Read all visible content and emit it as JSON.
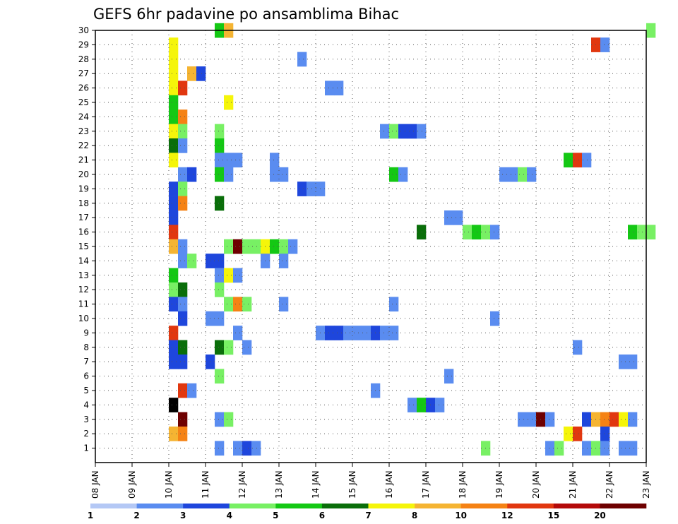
{
  "chart_data": {
    "type": "heatmap",
    "title": "GEFS 6hr padavine po ansamblima Bihac",
    "xlabel": "",
    "ylabel": "",
    "x_tick_labels": [
      "08 JAN",
      "09 JAN",
      "10 JAN",
      "11 JAN",
      "12 JAN",
      "13 JAN",
      "14 JAN",
      "15 JAN",
      "16 JAN",
      "17 JAN",
      "18 JAN",
      "19 JAN",
      "20 JAN",
      "21 JAN",
      "22 JAN",
      "23 JAN"
    ],
    "y_tick_labels": [
      "1",
      "2",
      "3",
      "4",
      "5",
      "6",
      "7",
      "8",
      "9",
      "10",
      "11",
      "12",
      "13",
      "14",
      "15",
      "16",
      "17",
      "18",
      "19",
      "20",
      "21",
      "22",
      "23",
      "24",
      "25",
      "26",
      "27",
      "28",
      "29",
      "30"
    ],
    "xlim_days": [
      0,
      15
    ],
    "ylim_members": [
      0,
      30
    ],
    "time_step_hours": 6,
    "grid": true,
    "colorbar_labels": [
      "1",
      "2",
      "3",
      "4",
      "5",
      "6",
      "7",
      "8",
      "10",
      "12",
      "15",
      "20"
    ],
    "colorbar_colors": [
      "#b4c8f5",
      "#5a8cf0",
      "#1e46dc",
      "#78f064",
      "#14c814",
      "#0a6e0a",
      "#f5f50a",
      "#f5b432",
      "#f58214",
      "#e1370f",
      "#b40a0a",
      "#6e0000"
    ],
    "cells": [
      [
        30,
        3.25,
        4
      ],
      [
        30,
        3.5,
        7
      ],
      [
        30,
        15,
        3
      ],
      [
        29,
        2,
        6
      ],
      [
        29,
        13.5,
        9
      ],
      [
        29,
        13.75,
        1
      ],
      [
        28,
        2,
        6
      ],
      [
        28,
        5.5,
        1
      ],
      [
        27,
        2,
        6
      ],
      [
        27,
        2.5,
        7
      ],
      [
        27,
        2.75,
        2
      ],
      [
        26,
        2,
        6
      ],
      [
        26,
        2.25,
        9
      ],
      [
        26,
        6.25,
        1
      ],
      [
        26,
        6.5,
        1
      ],
      [
        25,
        2,
        4
      ],
      [
        25,
        3.5,
        6
      ],
      [
        24,
        2,
        4
      ],
      [
        24,
        2.25,
        8
      ],
      [
        23,
        2,
        6
      ],
      [
        23,
        2.25,
        3
      ],
      [
        23,
        3.25,
        3
      ],
      [
        23,
        7.75,
        1
      ],
      [
        23,
        8,
        3
      ],
      [
        23,
        8.25,
        2
      ],
      [
        23,
        8.5,
        2
      ],
      [
        23,
        8.75,
        1
      ],
      [
        22,
        2,
        5
      ],
      [
        22,
        2.25,
        1
      ],
      [
        22,
        3.25,
        4
      ],
      [
        21,
        2,
        6
      ],
      [
        21,
        3.25,
        1
      ],
      [
        21,
        3.5,
        1
      ],
      [
        21,
        3.75,
        1
      ],
      [
        21,
        4.75,
        1
      ],
      [
        21,
        12.75,
        4
      ],
      [
        21,
        13,
        9
      ],
      [
        21,
        13.25,
        1
      ],
      [
        20,
        2.25,
        1
      ],
      [
        20,
        2.5,
        2
      ],
      [
        20,
        3.25,
        4
      ],
      [
        20,
        3.5,
        1
      ],
      [
        20,
        4.75,
        1
      ],
      [
        20,
        5,
        1
      ],
      [
        20,
        8,
        4
      ],
      [
        20,
        8.25,
        1
      ],
      [
        20,
        11,
        1
      ],
      [
        20,
        11.25,
        1
      ],
      [
        20,
        11.5,
        3
      ],
      [
        20,
        11.75,
        1
      ],
      [
        19,
        2,
        2
      ],
      [
        19,
        2.25,
        3
      ],
      [
        19,
        5.5,
        2
      ],
      [
        19,
        5.75,
        1
      ],
      [
        19,
        6,
        1
      ],
      [
        18,
        2,
        2
      ],
      [
        18,
        2.25,
        8
      ],
      [
        18,
        3.25,
        5
      ],
      [
        17,
        2,
        2
      ],
      [
        17,
        9.5,
        1
      ],
      [
        17,
        9.75,
        1
      ],
      [
        16,
        2,
        9
      ],
      [
        16,
        8.75,
        5
      ],
      [
        16,
        10,
        3
      ],
      [
        16,
        10.25,
        4
      ],
      [
        16,
        10.5,
        3
      ],
      [
        16,
        10.75,
        1
      ],
      [
        16,
        14.5,
        4
      ],
      [
        16,
        14.75,
        3
      ],
      [
        16,
        15,
        3
      ],
      [
        15,
        2,
        7
      ],
      [
        15,
        2.25,
        1
      ],
      [
        15,
        3.5,
        3
      ],
      [
        15,
        3.75,
        11
      ],
      [
        15,
        4,
        3
      ],
      [
        15,
        4.25,
        3
      ],
      [
        15,
        4.5,
        6
      ],
      [
        15,
        4.75,
        4
      ],
      [
        15,
        5,
        3
      ],
      [
        15,
        5.25,
        1
      ],
      [
        14,
        2.25,
        1
      ],
      [
        14,
        2.5,
        3
      ],
      [
        14,
        3,
        2
      ],
      [
        14,
        3.25,
        2
      ],
      [
        14,
        4.5,
        1
      ],
      [
        14,
        5,
        1
      ],
      [
        13,
        2,
        4
      ],
      [
        13,
        3.25,
        1
      ],
      [
        13,
        3.5,
        6
      ],
      [
        13,
        3.75,
        1
      ],
      [
        12,
        2,
        3
      ],
      [
        12,
        2.25,
        5
      ],
      [
        12,
        3.25,
        3
      ],
      [
        11,
        2,
        2
      ],
      [
        11,
        2.25,
        1
      ],
      [
        11,
        3.5,
        3
      ],
      [
        11,
        3.75,
        8
      ],
      [
        11,
        4,
        3
      ],
      [
        11,
        5,
        1
      ],
      [
        11,
        8,
        1
      ],
      [
        10,
        2.25,
        2
      ],
      [
        10,
        3,
        1
      ],
      [
        10,
        3.25,
        1
      ],
      [
        10,
        10.75,
        1
      ],
      [
        9,
        2,
        9
      ],
      [
        9,
        3.75,
        1
      ],
      [
        9,
        6,
        1
      ],
      [
        9,
        6.25,
        2
      ],
      [
        9,
        6.5,
        2
      ],
      [
        9,
        6.75,
        1
      ],
      [
        9,
        7,
        1
      ],
      [
        9,
        7.25,
        1
      ],
      [
        9,
        7.5,
        2
      ],
      [
        9,
        7.75,
        1
      ],
      [
        9,
        8,
        1
      ],
      [
        8,
        2,
        2
      ],
      [
        8,
        2.25,
        5
      ],
      [
        8,
        3.25,
        5
      ],
      [
        8,
        3.5,
        3
      ],
      [
        8,
        4,
        1
      ],
      [
        8,
        13,
        1
      ],
      [
        7,
        2,
        2
      ],
      [
        7,
        2.25,
        2
      ],
      [
        7,
        3,
        2
      ],
      [
        7,
        14.25,
        1
      ],
      [
        7,
        14.5,
        1
      ],
      [
        6,
        3.25,
        3
      ],
      [
        6,
        9.5,
        1
      ],
      [
        5,
        2.25,
        9
      ],
      [
        5,
        2.5,
        1
      ],
      [
        5,
        7.5,
        1
      ],
      [
        4,
        2,
        12
      ],
      [
        4,
        8.5,
        1
      ],
      [
        4,
        8.75,
        4
      ],
      [
        4,
        9,
        2
      ],
      [
        4,
        9.25,
        1
      ],
      [
        3,
        2.25,
        11
      ],
      [
        3,
        3.25,
        1
      ],
      [
        3,
        3.5,
        3
      ],
      [
        3,
        11.5,
        1
      ],
      [
        3,
        11.75,
        1
      ],
      [
        3,
        12,
        11
      ],
      [
        3,
        12.25,
        1
      ],
      [
        3,
        13.25,
        2
      ],
      [
        3,
        13.5,
        7
      ],
      [
        3,
        13.75,
        8
      ],
      [
        3,
        14,
        9
      ],
      [
        3,
        14.25,
        6
      ],
      [
        3,
        14.5,
        1
      ],
      [
        2,
        2,
        7
      ],
      [
        2,
        2.25,
        8
      ],
      [
        2,
        12.75,
        6
      ],
      [
        2,
        13,
        9
      ],
      [
        2,
        13.75,
        2
      ],
      [
        1,
        3.25,
        1
      ],
      [
        1,
        3.75,
        1
      ],
      [
        1,
        4,
        2
      ],
      [
        1,
        4.25,
        1
      ],
      [
        1,
        10.5,
        3
      ],
      [
        1,
        12.25,
        1
      ],
      [
        1,
        12.5,
        3
      ],
      [
        1,
        13.25,
        1
      ],
      [
        1,
        13.5,
        3
      ],
      [
        1,
        13.75,
        1
      ],
      [
        1,
        14.25,
        1
      ],
      [
        1,
        14.5,
        1
      ]
    ]
  }
}
